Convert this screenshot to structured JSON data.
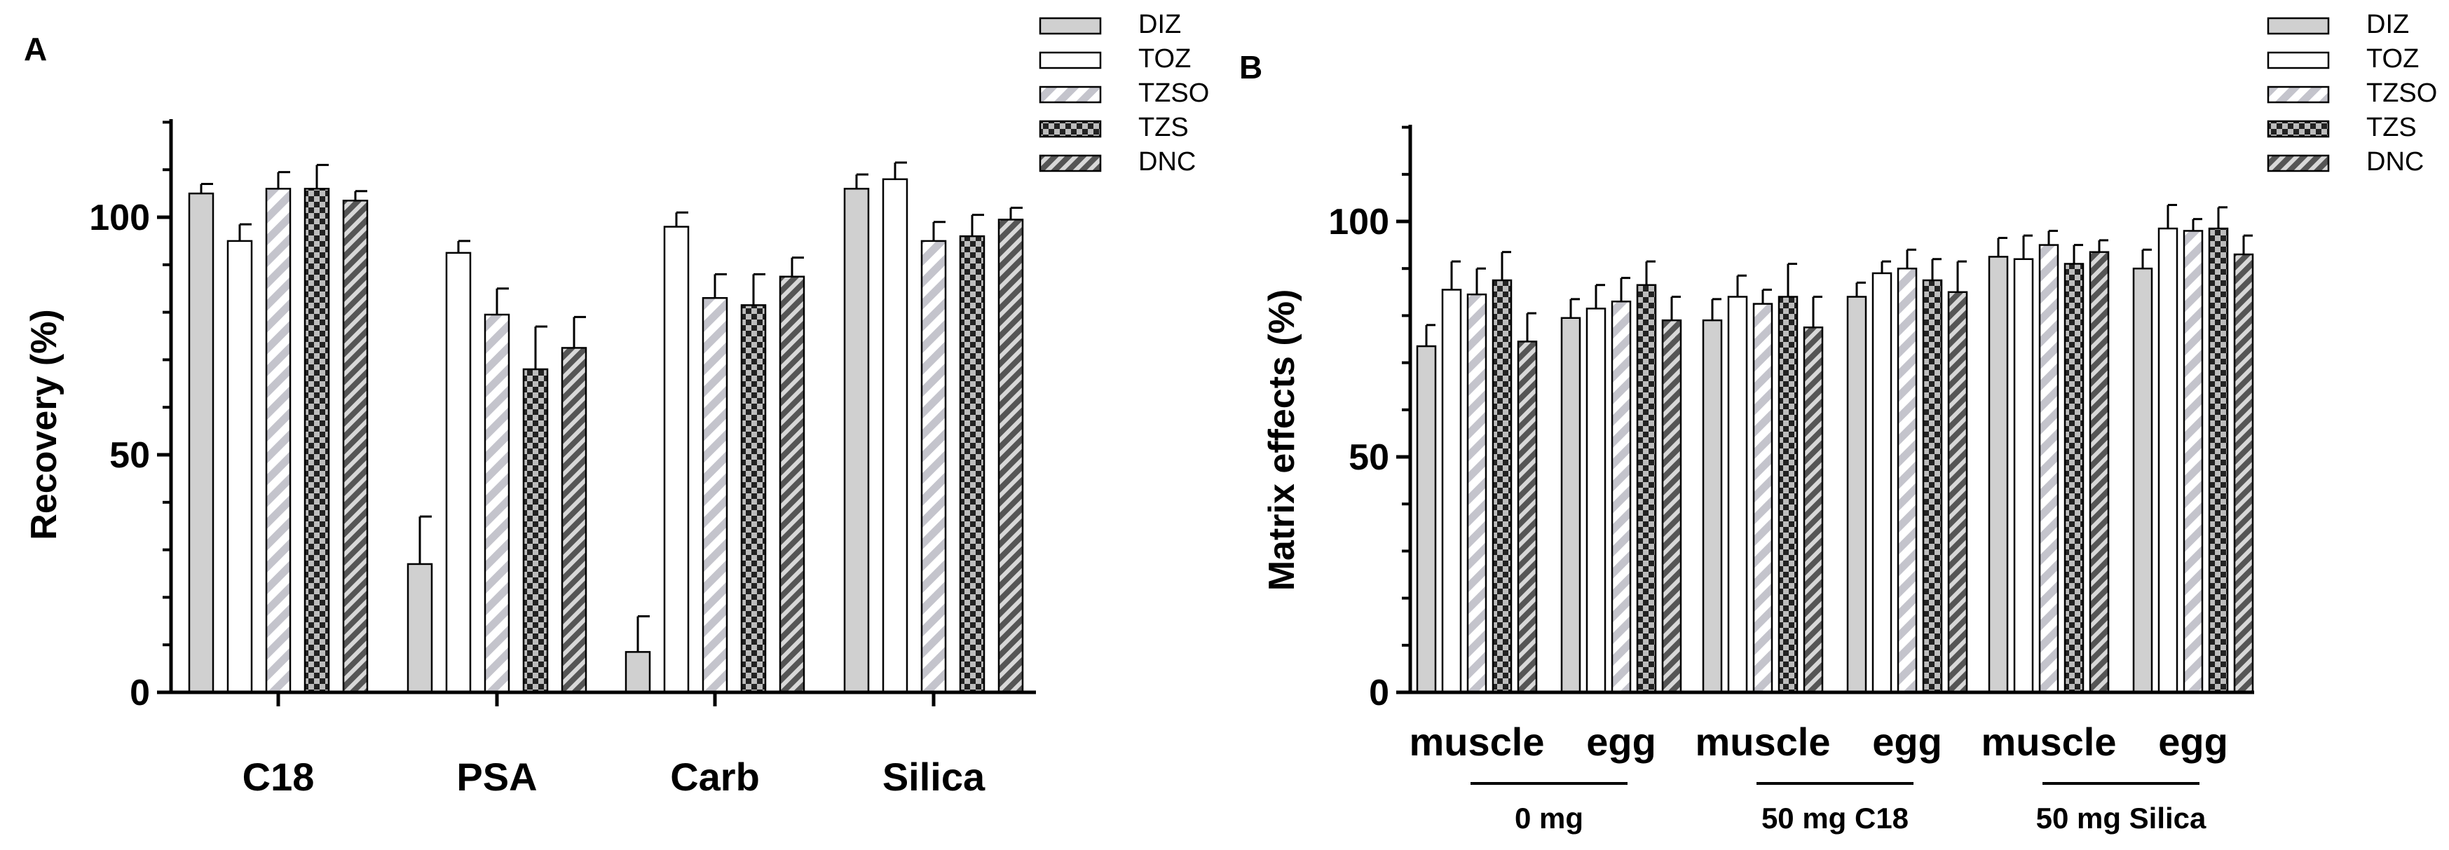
{
  "chart_data": [
    {
      "panel": "A",
      "type": "bar",
      "xlabel": "",
      "ylabel": "Recovery (%)",
      "ylim": [
        0,
        120
      ],
      "yticks": [
        0,
        50,
        100
      ],
      "categories": [
        "C18",
        "PSA",
        "Carb",
        "Silica"
      ],
      "series": [
        {
          "name": "DIZ",
          "pattern": "solid-gray",
          "values": [
            105,
            27,
            8.5,
            106
          ],
          "errors": [
            2,
            10,
            7.5,
            3
          ]
        },
        {
          "name": "TOZ",
          "pattern": "white",
          "values": [
            95,
            92.5,
            98,
            108
          ],
          "errors": [
            3.5,
            2.5,
            3,
            3.5
          ]
        },
        {
          "name": "TZSO",
          "pattern": "diagonal",
          "values": [
            106,
            79.5,
            83,
            95
          ],
          "errors": [
            3.5,
            5.5,
            5,
            4
          ]
        },
        {
          "name": "TZS",
          "pattern": "checker",
          "values": [
            106,
            68,
            81.5,
            96
          ],
          "errors": [
            5,
            9,
            6.5,
            4.5
          ]
        },
        {
          "name": "DNC",
          "pattern": "dense-diagonal",
          "values": [
            103.5,
            72.5,
            87.5,
            99.5
          ],
          "errors": [
            2,
            6.5,
            4,
            2.5
          ]
        }
      ],
      "legend": [
        "DIZ",
        "TOZ",
        "TZSO",
        "TZS",
        "DNC"
      ]
    },
    {
      "panel": "B",
      "type": "bar",
      "xlabel": "",
      "ylabel": "Matrix effects (%)",
      "ylim": [
        0,
        120
      ],
      "yticks": [
        0,
        50,
        100
      ],
      "categories": [
        "muscle",
        "egg",
        "muscle",
        "egg",
        "muscle",
        "egg"
      ],
      "groups": [
        {
          "label": "0 mg",
          "categories": [
            "muscle",
            "egg"
          ]
        },
        {
          "label": "50 mg C18",
          "categories": [
            "muscle",
            "egg"
          ]
        },
        {
          "label": "50 mg Silica",
          "categories": [
            "muscle",
            "egg"
          ]
        }
      ],
      "series": [
        {
          "name": "DIZ",
          "pattern": "solid-gray",
          "values": [
            73.5,
            79.5,
            79,
            84,
            92.5,
            90
          ],
          "errors": [
            4.5,
            4,
            4.5,
            3,
            4,
            4
          ]
        },
        {
          "name": "TOZ",
          "pattern": "white",
          "values": [
            85.5,
            81.5,
            84,
            89,
            92,
            98.5
          ],
          "errors": [
            6,
            5,
            4.5,
            2.5,
            5,
            5
          ]
        },
        {
          "name": "TZSO",
          "pattern": "diagonal",
          "values": [
            84.5,
            83,
            82.5,
            90,
            95,
            98
          ],
          "errors": [
            5.5,
            5,
            3,
            4,
            3,
            2.5
          ]
        },
        {
          "name": "TZS",
          "pattern": "checker",
          "values": [
            87.5,
            86.5,
            84,
            87.5,
            91,
            98.5
          ],
          "errors": [
            6,
            5,
            7,
            4.5,
            4,
            4.5
          ]
        },
        {
          "name": "DNC",
          "pattern": "dense-diagonal",
          "values": [
            74.5,
            79,
            77.5,
            85,
            93.5,
            93
          ],
          "errors": [
            6,
            5,
            6.5,
            6.5,
            2.5,
            4
          ]
        }
      ],
      "legend": [
        "DIZ",
        "TOZ",
        "TZSO",
        "TZS",
        "DNC"
      ]
    }
  ],
  "panels": {
    "a": {
      "letter": "A"
    },
    "b": {
      "letter": "B"
    }
  },
  "colors": {
    "solid_gray": "#d0d0d0",
    "stripe_light": "#c4c4cc",
    "dark_stripe": "#555555",
    "checker_dark": "#222222",
    "checker_light": "#bdbdbd",
    "axis": "#000000"
  }
}
